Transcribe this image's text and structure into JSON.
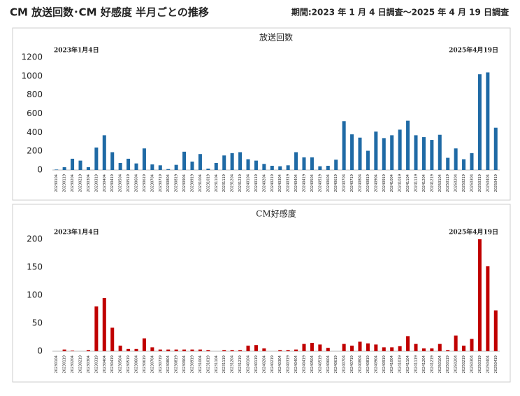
{
  "title": "CM 放送回数･CM 好感度 半月ごとの推移",
  "subtitle": "期間:2023 年 1 月 4 日調査～2025 年 4 月 19 日調査",
  "chart_data": [
    {
      "type": "bar",
      "title": "放送回数",
      "color": "#1f6aa5",
      "annotations": [
        "2023年1月4日",
        "2025年4月19日"
      ],
      "categories": [
        "20230104",
        "20230119",
        "20230204",
        "20230219",
        "20230304",
        "20230319",
        "20230404",
        "20230419",
        "20230504",
        "20230519",
        "20230604",
        "20230619",
        "20230704",
        "20230719",
        "20230804",
        "20230819",
        "20230904",
        "20230919",
        "20231004",
        "20231019",
        "20231104",
        "20231119",
        "20231204",
        "20231219",
        "20240104",
        "20240119",
        "20240204",
        "20240219",
        "20240304",
        "20240319",
        "20240404",
        "20240419",
        "20240504",
        "20240519",
        "20240604",
        "20240619",
        "20240704",
        "20240719",
        "20240804",
        "20240819",
        "20240904",
        "20240919",
        "20241004",
        "20241019",
        "20241104",
        "20241119",
        "20241204",
        "20241219",
        "20250104",
        "20250119",
        "20250204",
        "20250219",
        "20250304",
        "20250319",
        "20250404",
        "20250419"
      ],
      "values": [
        5,
        30,
        120,
        100,
        30,
        240,
        370,
        190,
        75,
        120,
        70,
        230,
        60,
        50,
        10,
        55,
        195,
        90,
        170,
        15,
        75,
        155,
        180,
        190,
        115,
        100,
        65,
        45,
        40,
        50,
        190,
        135,
        135,
        40,
        45,
        110,
        520,
        380,
        345,
        205,
        410,
        340,
        370,
        430,
        525,
        370,
        350,
        320,
        375,
        130,
        230,
        115,
        180,
        1020,
        1040,
        450
      ],
      "ylim": [
        0,
        1200
      ],
      "yticks": [
        0,
        200,
        400,
        600,
        800,
        1000,
        1200
      ],
      "grid": false
    },
    {
      "type": "bar",
      "title": "CM好感度",
      "color": "#c00000",
      "annotations": [
        "2023年1月4日",
        "2025年4月19日"
      ],
      "categories": [
        "20230104",
        "20230119",
        "20230204",
        "20230219",
        "20230304",
        "20230319",
        "20230404",
        "20230419",
        "20230504",
        "20230519",
        "20230604",
        "20230619",
        "20230704",
        "20230719",
        "20230804",
        "20230819",
        "20230904",
        "20230919",
        "20231004",
        "20231019",
        "20231104",
        "20231119",
        "20231204",
        "20231219",
        "20240104",
        "20240119",
        "20240204",
        "20240219",
        "20240304",
        "20240319",
        "20240404",
        "20240419",
        "20240504",
        "20240519",
        "20240604",
        "20240619",
        "20240704",
        "20240719",
        "20240804",
        "20240819",
        "20240904",
        "20240919",
        "20241004",
        "20241019",
        "20241104",
        "20241119",
        "20241204",
        "20241219",
        "20250104",
        "20250119",
        "20250204",
        "20250219",
        "20250304",
        "20250319",
        "20250404",
        "20250419"
      ],
      "values": [
        0,
        3,
        1,
        0,
        2,
        80,
        95,
        42,
        10,
        4,
        4,
        23,
        7,
        3,
        3,
        3,
        3,
        3,
        3,
        2,
        0,
        2,
        2,
        2,
        10,
        11,
        5,
        0,
        2,
        2,
        3,
        13,
        15,
        12,
        6,
        0,
        13,
        10,
        17,
        14,
        12,
        7,
        7,
        9,
        27,
        13,
        5,
        5,
        13,
        2,
        28,
        10,
        22,
        200,
        152,
        73
      ],
      "ylim": [
        0,
        200
      ],
      "yticks": [
        0,
        50,
        100,
        150,
        200
      ],
      "grid": false
    }
  ]
}
